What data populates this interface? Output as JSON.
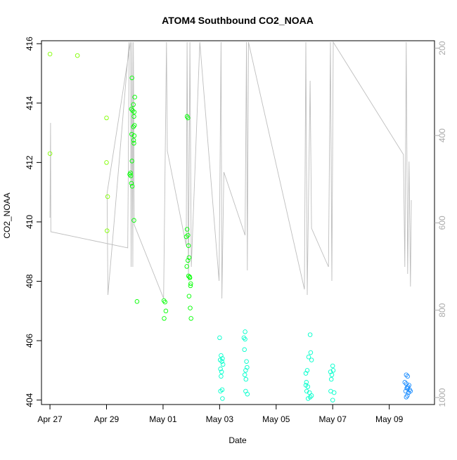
{
  "chart_data": {
    "type": "scatter",
    "title": "ATOM4 Southbound CO2_NOAA",
    "xlabel": "Date",
    "ylabel": "CO2_NOAA",
    "xlim": [
      26.7,
      40.6
    ],
    "ylim": [
      403.85,
      416.1
    ],
    "x_ticks": [
      {
        "value": 27,
        "label": "Apr 27"
      },
      {
        "value": 29,
        "label": "Apr 29"
      },
      {
        "value": 31,
        "label": "May 01"
      },
      {
        "value": 33,
        "label": "May 03"
      },
      {
        "value": 35,
        "label": "May 05"
      },
      {
        "value": 37,
        "label": "May 07"
      },
      {
        "value": 39,
        "label": "May 09"
      }
    ],
    "y_ticks": [
      404,
      406,
      408,
      410,
      412,
      414,
      416
    ],
    "y2_ticks": [
      200,
      400,
      600,
      800,
      1000
    ],
    "y2lim": [
      183,
      1016
    ],
    "y2_reversed": true,
    "colors": {
      "text": "#000000",
      "axis": "#000000",
      "pressure_line": "#bebebe",
      "pressure_axis": "#aaaaaa"
    },
    "series": [
      {
        "color": "#80ff00",
        "points": [
          [
            27.0,
            415.65
          ],
          [
            27.97,
            415.6
          ],
          [
            27.0,
            412.3
          ],
          [
            29.0,
            413.5
          ],
          [
            29.0,
            412.0
          ],
          [
            29.04,
            410.85
          ],
          [
            29.02,
            409.7
          ]
        ]
      },
      {
        "color": "#00ff00",
        "points": [
          [
            29.9,
            414.85
          ],
          [
            30.0,
            414.2
          ],
          [
            29.95,
            413.95
          ],
          [
            29.92,
            413.75
          ],
          [
            29.98,
            413.7
          ],
          [
            29.97,
            413.55
          ],
          [
            29.88,
            413.8
          ],
          [
            29.99,
            413.25
          ],
          [
            29.95,
            413.2
          ],
          [
            29.89,
            412.95
          ],
          [
            29.98,
            412.9
          ],
          [
            29.96,
            412.75
          ],
          [
            29.97,
            412.65
          ],
          [
            29.9,
            412.05
          ],
          [
            29.85,
            411.65
          ],
          [
            29.82,
            411.6
          ],
          [
            29.86,
            411.55
          ],
          [
            29.88,
            411.3
          ],
          [
            29.91,
            411.2
          ],
          [
            29.97,
            410.05
          ],
          [
            30.08,
            407.32
          ],
          [
            31.03,
            407.35
          ],
          [
            31.07,
            407.3
          ],
          [
            31.1,
            407.0
          ],
          [
            31.04,
            406.75
          ],
          [
            31.85,
            413.55
          ],
          [
            31.88,
            413.5
          ],
          [
            31.85,
            409.75
          ],
          [
            31.88,
            409.55
          ],
          [
            31.82,
            409.5
          ],
          [
            31.9,
            409.2
          ],
          [
            31.92,
            408.8
          ],
          [
            31.88,
            408.7
          ],
          [
            31.84,
            408.5
          ],
          [
            31.9,
            408.18
          ],
          [
            31.95,
            408.12
          ],
          [
            31.98,
            407.92
          ],
          [
            31.97,
            407.85
          ],
          [
            31.92,
            407.5
          ],
          [
            31.96,
            407.1
          ],
          [
            31.99,
            406.75
          ],
          [
            31.94,
            408.15
          ]
        ]
      },
      {
        "color": "#00ffcc",
        "points": [
          [
            33.0,
            406.1
          ],
          [
            33.05,
            405.5
          ],
          [
            33.1,
            405.4
          ],
          [
            33.02,
            405.35
          ],
          [
            33.08,
            405.3
          ],
          [
            33.12,
            405.2
          ],
          [
            33.03,
            405.05
          ],
          [
            33.07,
            404.95
          ],
          [
            33.05,
            404.8
          ],
          [
            33.09,
            404.35
          ],
          [
            33.03,
            404.3
          ],
          [
            33.1,
            404.05
          ],
          [
            33.9,
            406.3
          ],
          [
            33.86,
            406.1
          ],
          [
            33.9,
            406.05
          ],
          [
            33.88,
            405.7
          ],
          [
            33.95,
            405.3
          ],
          [
            33.97,
            405.1
          ],
          [
            33.92,
            405.0
          ],
          [
            33.89,
            404.85
          ],
          [
            33.93,
            404.7
          ],
          [
            33.92,
            404.3
          ],
          [
            33.98,
            404.2
          ],
          [
            36.1,
            405.0
          ],
          [
            36.05,
            404.9
          ],
          [
            36.2,
            406.2
          ],
          [
            36.22,
            405.6
          ],
          [
            36.15,
            405.45
          ],
          [
            36.25,
            405.35
          ],
          [
            36.07,
            404.6
          ],
          [
            36.05,
            404.5
          ],
          [
            36.12,
            404.45
          ],
          [
            36.08,
            404.3
          ],
          [
            36.18,
            404.25
          ],
          [
            36.2,
            404.1
          ],
          [
            36.13,
            404.05
          ],
          [
            36.25,
            404.15
          ],
          [
            36.92,
            404.95
          ],
          [
            37.0,
            405.15
          ],
          [
            36.97,
            404.85
          ],
          [
            36.95,
            404.7
          ],
          [
            36.93,
            404.3
          ],
          [
            37.0,
            404.0
          ],
          [
            37.05,
            404.25
          ],
          [
            37.02,
            405.0
          ]
        ]
      },
      {
        "color": "#1a8cff",
        "points": [
          [
            39.6,
            404.85
          ],
          [
            39.65,
            404.8
          ],
          [
            39.55,
            404.6
          ],
          [
            39.6,
            404.55
          ],
          [
            39.7,
            404.5
          ],
          [
            39.65,
            404.4
          ],
          [
            39.72,
            404.35
          ],
          [
            39.75,
            404.3
          ],
          [
            39.62,
            404.4
          ],
          [
            39.58,
            404.3
          ],
          [
            39.68,
            404.25
          ],
          [
            39.64,
            404.15
          ],
          [
            39.6,
            404.1
          ],
          [
            39.66,
            404.45
          ]
        ]
      }
    ]
  }
}
